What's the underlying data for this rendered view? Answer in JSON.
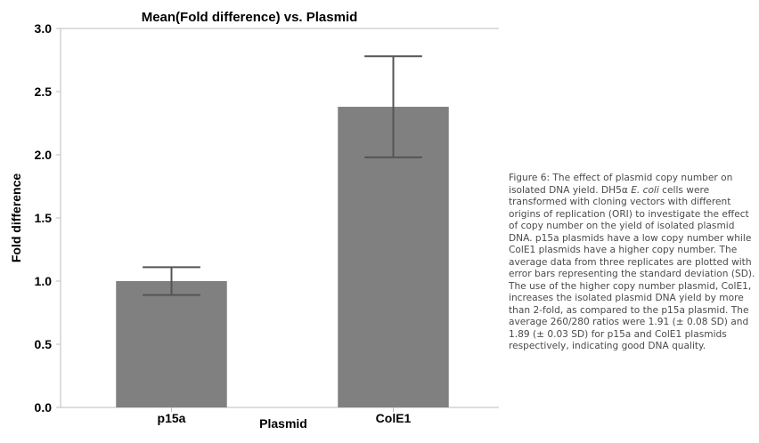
{
  "chart_data": {
    "type": "bar",
    "title": "Mean(Fold difference) vs. Plasmid",
    "xlabel": "Plasmid",
    "ylabel": "Fold difference",
    "categories": [
      "p15a",
      "ColE1"
    ],
    "values": [
      1.0,
      2.38
    ],
    "error_low": [
      0.89,
      1.98
    ],
    "error_high": [
      1.11,
      2.78
    ],
    "ylim": [
      0,
      3.0
    ],
    "yticks": [
      "0.0",
      "0.5",
      "1.0",
      "1.5",
      "2.0",
      "2.5",
      "3.0"
    ],
    "grid": false,
    "legend": "none",
    "bar_color": "#808080",
    "error_bar_color": "#555555"
  },
  "caption": {
    "t1": "Figure 6: The effect of plasmid copy number on isolated DNA yield. DH5α ",
    "t2": "E. coli",
    "t3": " cells were transformed with cloning vectors with different origins of replication (ORI) to investigate the effect of copy number on the yield of isolated plasmid DNA. p15a plasmids have a low copy number while ColE1 plasmids have a higher copy number. The average data from three replicates are plotted with error bars representing the standard deviation (SD). The use of the higher copy number plasmid, ColE1, increases the isolated plasmid DNA yield by more than 2-fold, as compared to the p15a plasmid. The average 260/280 ratios were 1.91 (± 0.08 SD) and 1.89 (± 0.03 SD) for p15a and ColE1 plasmids respectively, indicating good DNA quality."
  },
  "colors": {
    "axis_frame": "#bdbdbd",
    "text": "#000000",
    "caption_text": "#4a4a4a"
  }
}
